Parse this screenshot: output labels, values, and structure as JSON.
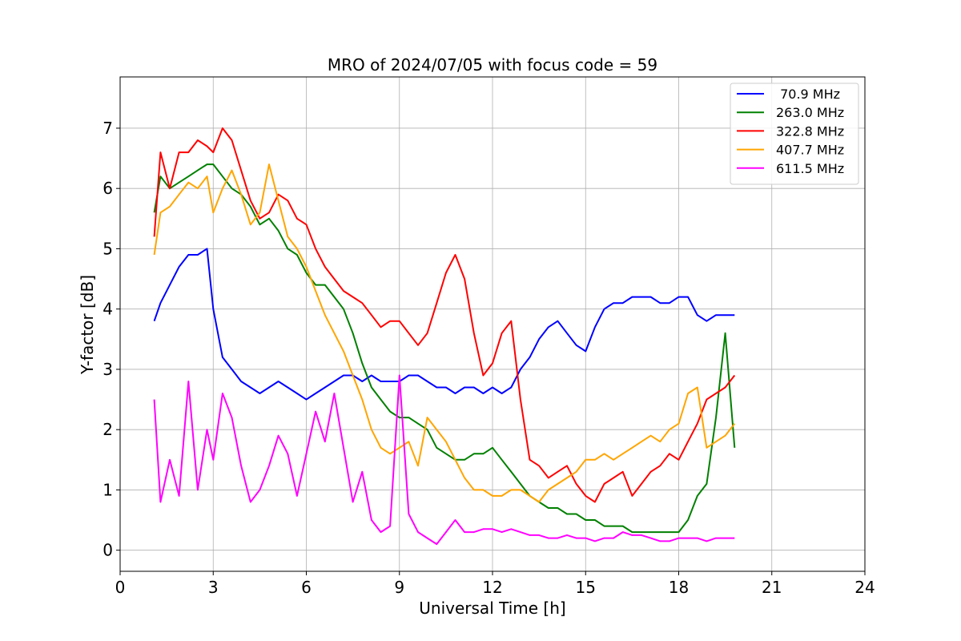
{
  "chart_data": {
    "type": "line",
    "title": "MRO of 2024/07/05 with focus code = 59",
    "xlabel": "Universal Time [h]",
    "ylabel": "Y-factor [dB]",
    "xlim": [
      0,
      24
    ],
    "ylim": [
      -0.35,
      7.85
    ],
    "xticks": [
      0,
      3,
      6,
      9,
      12,
      15,
      18,
      21,
      24
    ],
    "yticks": [
      0,
      1,
      2,
      3,
      4,
      5,
      6,
      7
    ],
    "grid": true,
    "legend_position": "top-right",
    "series": [
      {
        "name": " 70.9 MHz",
        "color": "#0000ff",
        "x": [
          1.1,
          1.3,
          1.6,
          1.9,
          2.2,
          2.5,
          2.8,
          3.0,
          3.3,
          3.6,
          3.9,
          4.2,
          4.5,
          4.8,
          5.1,
          5.4,
          5.7,
          6.0,
          6.3,
          6.6,
          6.9,
          7.2,
          7.5,
          7.8,
          8.1,
          8.4,
          8.7,
          9.0,
          9.3,
          9.6,
          9.9,
          10.2,
          10.5,
          10.8,
          11.1,
          11.4,
          11.7,
          12.0,
          12.3,
          12.6,
          12.9,
          13.2,
          13.5,
          13.8,
          14.1,
          14.4,
          14.7,
          15.0,
          15.3,
          15.6,
          15.9,
          16.2,
          16.5,
          16.8,
          17.1,
          17.4,
          17.7,
          18.0,
          18.3,
          18.6,
          18.9,
          19.2,
          19.5,
          19.8
        ],
        "y": [
          3.8,
          4.1,
          4.4,
          4.7,
          4.9,
          4.9,
          5.0,
          4.0,
          3.2,
          3.0,
          2.8,
          2.7,
          2.6,
          2.7,
          2.8,
          2.7,
          2.6,
          2.5,
          2.6,
          2.7,
          2.8,
          2.9,
          2.9,
          2.8,
          2.9,
          2.8,
          2.8,
          2.8,
          2.9,
          2.9,
          2.8,
          2.7,
          2.7,
          2.6,
          2.7,
          2.7,
          2.6,
          2.7,
          2.6,
          2.7,
          3.0,
          3.2,
          3.5,
          3.7,
          3.8,
          3.6,
          3.4,
          3.3,
          3.7,
          4.0,
          4.1,
          4.1,
          4.2,
          4.2,
          4.2,
          4.1,
          4.1,
          4.2,
          4.2,
          3.9,
          3.8,
          3.9,
          3.9,
          3.9
        ]
      },
      {
        "name": "263.0 MHz",
        "color": "#008000",
        "x": [
          1.1,
          1.3,
          1.6,
          1.9,
          2.2,
          2.5,
          2.8,
          3.0,
          3.3,
          3.6,
          3.9,
          4.2,
          4.5,
          4.8,
          5.1,
          5.4,
          5.7,
          6.0,
          6.3,
          6.6,
          6.9,
          7.2,
          7.5,
          7.8,
          8.1,
          8.4,
          8.7,
          9.0,
          9.3,
          9.6,
          9.9,
          10.2,
          10.5,
          10.8,
          11.1,
          11.4,
          11.7,
          12.0,
          12.3,
          12.6,
          12.9,
          13.2,
          13.5,
          13.8,
          14.1,
          14.4,
          14.7,
          15.0,
          15.3,
          15.6,
          15.9,
          16.2,
          16.5,
          16.8,
          17.1,
          17.4,
          17.7,
          18.0,
          18.3,
          18.6,
          18.9,
          19.2,
          19.5,
          19.8
        ],
        "y": [
          5.6,
          6.2,
          6.0,
          6.1,
          6.2,
          6.3,
          6.4,
          6.4,
          6.2,
          6.0,
          5.9,
          5.7,
          5.4,
          5.5,
          5.3,
          5.0,
          4.9,
          4.6,
          4.4,
          4.4,
          4.2,
          4.0,
          3.6,
          3.1,
          2.7,
          2.5,
          2.3,
          2.2,
          2.2,
          2.1,
          2.0,
          1.7,
          1.6,
          1.5,
          1.5,
          1.6,
          1.6,
          1.7,
          1.5,
          1.3,
          1.1,
          0.9,
          0.8,
          0.7,
          0.7,
          0.6,
          0.6,
          0.5,
          0.5,
          0.4,
          0.4,
          0.4,
          0.3,
          0.3,
          0.3,
          0.3,
          0.3,
          0.3,
          0.5,
          0.9,
          1.1,
          2.2,
          3.6,
          1.7
        ]
      },
      {
        "name": "322.8 MHz",
        "color": "#ff0000",
        "x": [
          1.1,
          1.3,
          1.6,
          1.9,
          2.2,
          2.5,
          2.8,
          3.0,
          3.3,
          3.6,
          3.9,
          4.2,
          4.5,
          4.8,
          5.1,
          5.4,
          5.7,
          6.0,
          6.3,
          6.6,
          6.9,
          7.2,
          7.5,
          7.8,
          8.1,
          8.4,
          8.7,
          9.0,
          9.3,
          9.6,
          9.9,
          10.2,
          10.5,
          10.8,
          11.1,
          11.4,
          11.7,
          12.0,
          12.3,
          12.6,
          12.9,
          13.2,
          13.5,
          13.8,
          14.1,
          14.4,
          14.7,
          15.0,
          15.3,
          15.6,
          15.9,
          16.2,
          16.5,
          16.8,
          17.1,
          17.4,
          17.7,
          18.0,
          18.3,
          18.6,
          18.9,
          19.2,
          19.5,
          19.8
        ],
        "y": [
          5.2,
          6.6,
          6.0,
          6.6,
          6.6,
          6.8,
          6.7,
          6.6,
          7.0,
          6.8,
          6.3,
          5.8,
          5.5,
          5.6,
          5.9,
          5.8,
          5.5,
          5.4,
          5.0,
          4.7,
          4.5,
          4.3,
          4.2,
          4.1,
          3.9,
          3.7,
          3.8,
          3.8,
          3.6,
          3.4,
          3.6,
          4.1,
          4.6,
          4.9,
          4.5,
          3.6,
          2.9,
          3.1,
          3.6,
          3.8,
          2.5,
          1.5,
          1.4,
          1.2,
          1.3,
          1.4,
          1.1,
          0.9,
          0.8,
          1.1,
          1.2,
          1.3,
          0.9,
          1.1,
          1.3,
          1.4,
          1.6,
          1.5,
          1.8,
          2.1,
          2.5,
          2.6,
          2.7,
          2.9
        ]
      },
      {
        "name": "407.7 MHz",
        "color": "#ffa500",
        "x": [
          1.1,
          1.3,
          1.6,
          1.9,
          2.2,
          2.5,
          2.8,
          3.0,
          3.3,
          3.6,
          3.9,
          4.2,
          4.5,
          4.8,
          5.1,
          5.4,
          5.7,
          6.0,
          6.3,
          6.6,
          6.9,
          7.2,
          7.5,
          7.8,
          8.1,
          8.4,
          8.7,
          9.0,
          9.3,
          9.6,
          9.9,
          10.2,
          10.5,
          10.8,
          11.1,
          11.4,
          11.7,
          12.0,
          12.3,
          12.6,
          12.9,
          13.2,
          13.5,
          13.8,
          14.1,
          14.4,
          14.7,
          15.0,
          15.3,
          15.6,
          15.9,
          16.2,
          16.5,
          16.8,
          17.1,
          17.4,
          17.7,
          18.0,
          18.3,
          18.6,
          18.9,
          19.2,
          19.5,
          19.8
        ],
        "y": [
          4.9,
          5.6,
          5.7,
          5.9,
          6.1,
          6.0,
          6.2,
          5.6,
          6.0,
          6.3,
          5.9,
          5.4,
          5.6,
          6.4,
          5.8,
          5.2,
          5.0,
          4.7,
          4.3,
          3.9,
          3.6,
          3.3,
          2.9,
          2.5,
          2.0,
          1.7,
          1.6,
          1.7,
          1.8,
          1.4,
          2.2,
          2.0,
          1.8,
          1.5,
          1.2,
          1.0,
          1.0,
          0.9,
          0.9,
          1.0,
          1.0,
          0.9,
          0.8,
          1.0,
          1.1,
          1.2,
          1.3,
          1.5,
          1.5,
          1.6,
          1.5,
          1.6,
          1.7,
          1.8,
          1.9,
          1.8,
          2.0,
          2.1,
          2.6,
          2.7,
          1.7,
          1.8,
          1.9,
          2.1
        ]
      },
      {
        "name": "611.5 MHz",
        "color": "#ff00ff",
        "x": [
          1.1,
          1.3,
          1.6,
          1.9,
          2.2,
          2.5,
          2.8,
          3.0,
          3.3,
          3.6,
          3.9,
          4.2,
          4.5,
          4.8,
          5.1,
          5.4,
          5.7,
          6.0,
          6.3,
          6.6,
          6.9,
          7.2,
          7.5,
          7.8,
          8.1,
          8.4,
          8.7,
          9.0,
          9.3,
          9.6,
          9.9,
          10.2,
          10.5,
          10.8,
          11.1,
          11.4,
          11.7,
          12.0,
          12.3,
          12.6,
          12.9,
          13.2,
          13.5,
          13.8,
          14.1,
          14.4,
          14.7,
          15.0,
          15.3,
          15.6,
          15.9,
          16.2,
          16.5,
          16.8,
          17.1,
          17.4,
          17.7,
          18.0,
          18.3,
          18.6,
          18.9,
          19.2,
          19.5,
          19.8
        ],
        "y": [
          2.5,
          0.8,
          1.5,
          0.9,
          2.8,
          1.0,
          2.0,
          1.5,
          2.6,
          2.2,
          1.4,
          0.8,
          1.0,
          1.4,
          1.9,
          1.6,
          0.9,
          1.6,
          2.3,
          1.8,
          2.6,
          1.7,
          0.8,
          1.3,
          0.5,
          0.3,
          0.4,
          2.9,
          0.6,
          0.3,
          0.2,
          0.1,
          0.3,
          0.5,
          0.3,
          0.3,
          0.35,
          0.35,
          0.3,
          0.35,
          0.3,
          0.25,
          0.25,
          0.2,
          0.2,
          0.25,
          0.2,
          0.2,
          0.15,
          0.2,
          0.2,
          0.3,
          0.25,
          0.25,
          0.2,
          0.15,
          0.15,
          0.2,
          0.2,
          0.2,
          0.15,
          0.2,
          0.2,
          0.2
        ]
      }
    ]
  }
}
